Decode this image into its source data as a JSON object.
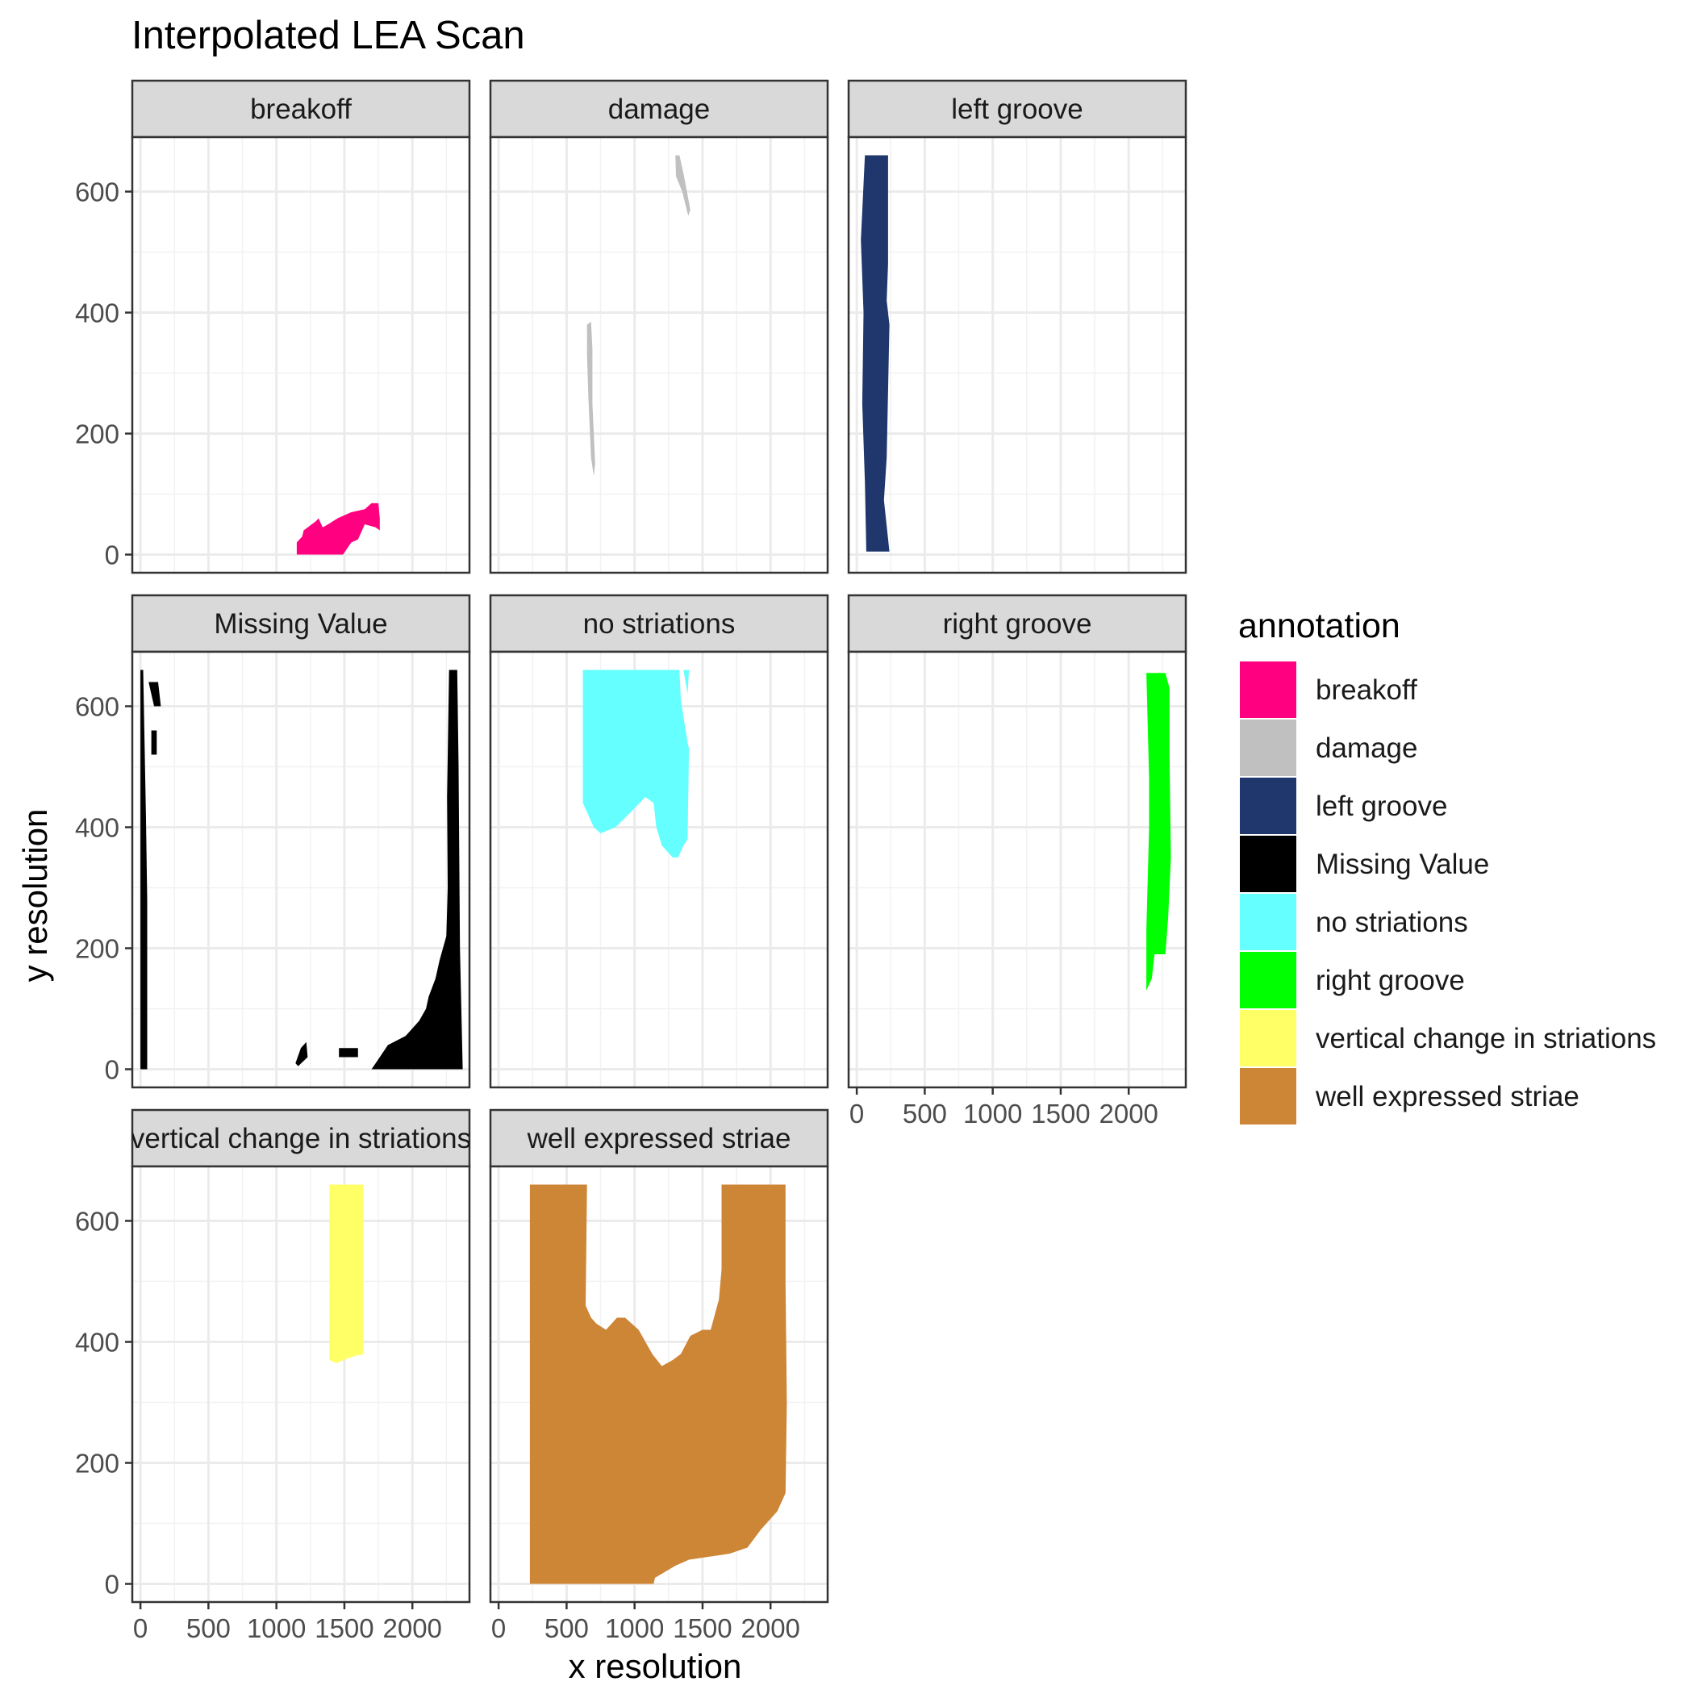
{
  "chart_data": {
    "type": "faceted raster",
    "title": "Interpolated LEA Scan",
    "xlabel": "x resolution",
    "ylabel": "y resolution",
    "xlim": [
      -60,
      2420
    ],
    "ylim": [
      -30,
      690
    ],
    "x_ticks": [
      0,
      500,
      1000,
      1500,
      2000
    ],
    "x_tick_labels": [
      "0",
      "500",
      "1000",
      "1500",
      "2000"
    ],
    "y_ticks": [
      0,
      200,
      400,
      600
    ],
    "y_tick_labels": [
      "0",
      "200",
      "400",
      "600"
    ],
    "grid": true,
    "legend": {
      "title": "annotation",
      "position": "right",
      "entries": [
        {
          "label": "breakoff",
          "color": "#FF0080"
        },
        {
          "label": "damage",
          "color": "#C0C0C0"
        },
        {
          "label": "left groove",
          "color": "#1F376C"
        },
        {
          "label": "Missing Value",
          "color": "#000000"
        },
        {
          "label": "no striations",
          "color": "#66FFFF"
        },
        {
          "label": "right groove",
          "color": "#00FF00"
        },
        {
          "label": "vertical change in striations",
          "color": "#FFFF66"
        },
        {
          "label": "well expressed striae",
          "color": "#CD8536"
        }
      ]
    },
    "facets": [
      {
        "label": "breakoff",
        "color": "#FF0080",
        "regions": [
          [
            [
              1150,
              0
            ],
            [
              1150,
              20
            ],
            [
              1190,
              30
            ],
            [
              1200,
              40
            ],
            [
              1260,
              50
            ],
            [
              1290,
              55
            ],
            [
              1310,
              60
            ],
            [
              1340,
              45
            ],
            [
              1380,
              50
            ],
            [
              1450,
              60
            ],
            [
              1550,
              70
            ],
            [
              1650,
              75
            ],
            [
              1700,
              85
            ],
            [
              1750,
              85
            ],
            [
              1760,
              60
            ],
            [
              1760,
              40
            ],
            [
              1730,
              45
            ],
            [
              1650,
              50
            ],
            [
              1600,
              25
            ],
            [
              1550,
              20
            ],
            [
              1490,
              0
            ]
          ]
        ]
      },
      {
        "label": "damage",
        "color": "#C0C0C0",
        "regions": [
          [
            [
              650,
              380
            ],
            [
              680,
              385
            ],
            [
              690,
              340
            ],
            [
              690,
              250
            ],
            [
              710,
              150
            ],
            [
              700,
              130
            ],
            [
              680,
              160
            ],
            [
              660,
              260
            ],
            [
              650,
              330
            ]
          ],
          [
            [
              1300,
              660
            ],
            [
              1330,
              660
            ],
            [
              1360,
              630
            ],
            [
              1410,
              570
            ],
            [
              1395,
              560
            ],
            [
              1350,
              600
            ],
            [
              1305,
              625
            ]
          ]
        ]
      },
      {
        "label": "left groove",
        "color": "#1F376C",
        "regions": [
          [
            [
              60,
              660
            ],
            [
              230,
              660
            ],
            [
              230,
              480
            ],
            [
              220,
              420
            ],
            [
              240,
              380
            ],
            [
              230,
              270
            ],
            [
              220,
              160
            ],
            [
              200,
              90
            ],
            [
              240,
              5
            ],
            [
              70,
              5
            ],
            [
              60,
              120
            ],
            [
              40,
              250
            ],
            [
              50,
              400
            ],
            [
              30,
              520
            ]
          ]
        ]
      },
      {
        "label": "Missing Value",
        "color": "#000000",
        "regions": [
          [
            [
              0,
              660
            ],
            [
              20,
              660
            ],
            [
              40,
              420
            ],
            [
              50,
              280
            ],
            [
              50,
              0
            ],
            [
              0,
              0
            ]
          ],
          [
            [
              2270,
              660
            ],
            [
              2330,
              660
            ],
            [
              2340,
              500
            ],
            [
              2350,
              200
            ],
            [
              2370,
              0
            ],
            [
              1700,
              0
            ],
            [
              1760,
              20
            ],
            [
              1820,
              40
            ],
            [
              1950,
              55
            ],
            [
              2050,
              80
            ],
            [
              2100,
              100
            ],
            [
              2120,
              120
            ],
            [
              2170,
              150
            ],
            [
              2200,
              180
            ],
            [
              2250,
              220
            ],
            [
              2260,
              300
            ],
            [
              2255,
              450
            ]
          ],
          [
            [
              1140,
              10
            ],
            [
              1180,
              35
            ],
            [
              1220,
              45
            ],
            [
              1230,
              20
            ],
            [
              1160,
              5
            ]
          ],
          [
            [
              1460,
              35
            ],
            [
              1600,
              35
            ],
            [
              1600,
              20
            ],
            [
              1460,
              20
            ]
          ],
          [
            [
              60,
              640
            ],
            [
              100,
              600
            ],
            [
              150,
              600
            ],
            [
              130,
              640
            ]
          ],
          [
            [
              80,
              560
            ],
            [
              120,
              560
            ],
            [
              120,
              520
            ],
            [
              80,
              520
            ]
          ]
        ]
      },
      {
        "label": "no striations",
        "color": "#66FFFF",
        "regions": [
          [
            [
              620,
              660
            ],
            [
              1330,
              660
            ],
            [
              1340,
              610
            ],
            [
              1390,
              540
            ],
            [
              1400,
              530
            ],
            [
              1390,
              380
            ],
            [
              1360,
              370
            ],
            [
              1320,
              350
            ],
            [
              1280,
              350
            ],
            [
              1200,
              370
            ],
            [
              1160,
              400
            ],
            [
              1140,
              440
            ],
            [
              1080,
              450
            ],
            [
              950,
              420
            ],
            [
              860,
              400
            ],
            [
              750,
              390
            ],
            [
              700,
              400
            ],
            [
              660,
              420
            ],
            [
              620,
              440
            ]
          ],
          [
            [
              1360,
              660
            ],
            [
              1400,
              660
            ],
            [
              1390,
              620
            ]
          ]
        ]
      },
      {
        "label": "right groove",
        "color": "#00FF00",
        "regions": [
          [
            [
              2130,
              655
            ],
            [
              2270,
              655
            ],
            [
              2300,
              630
            ],
            [
              2300,
              520
            ],
            [
              2310,
              350
            ],
            [
              2290,
              250
            ],
            [
              2270,
              190
            ],
            [
              2190,
              190
            ],
            [
              2170,
              150
            ],
            [
              2130,
              130
            ],
            [
              2130,
              230
            ],
            [
              2150,
              400
            ],
            [
              2150,
              480
            ]
          ]
        ]
      },
      {
        "label": "vertical change in striations",
        "color": "#FFFF66",
        "regions": [
          [
            [
              1390,
              660
            ],
            [
              1640,
              660
            ],
            [
              1640,
              380
            ],
            [
              1550,
              375
            ],
            [
              1440,
              365
            ],
            [
              1390,
              370
            ]
          ]
        ]
      },
      {
        "label": "well expressed striae",
        "color": "#CD8536",
        "regions": [
          [
            [
              230,
              660
            ],
            [
              650,
              660
            ],
            [
              640,
              460
            ],
            [
              680,
              440
            ],
            [
              720,
              430
            ],
            [
              790,
              420
            ],
            [
              870,
              440
            ],
            [
              930,
              440
            ],
            [
              1030,
              420
            ],
            [
              1130,
              380
            ],
            [
              1200,
              360
            ],
            [
              1280,
              370
            ],
            [
              1340,
              380
            ],
            [
              1410,
              410
            ],
            [
              1500,
              420
            ],
            [
              1560,
              420
            ],
            [
              1620,
              470
            ],
            [
              1640,
              520
            ],
            [
              1640,
              660
            ],
            [
              2110,
              660
            ],
            [
              2110,
              500
            ],
            [
              2120,
              300
            ],
            [
              2110,
              150
            ],
            [
              2050,
              120
            ],
            [
              1930,
              90
            ],
            [
              1830,
              60
            ],
            [
              1700,
              50
            ],
            [
              1550,
              45
            ],
            [
              1400,
              40
            ],
            [
              1300,
              30
            ],
            [
              1150,
              10
            ],
            [
              1140,
              0
            ],
            [
              230,
              0
            ]
          ],
          [
            [
              680,
              400
            ],
            [
              700,
              130
            ],
            [
              730,
              160
            ],
            [
              750,
              330
            ],
            [
              760,
              400
            ]
          ]
        ]
      }
    ]
  }
}
